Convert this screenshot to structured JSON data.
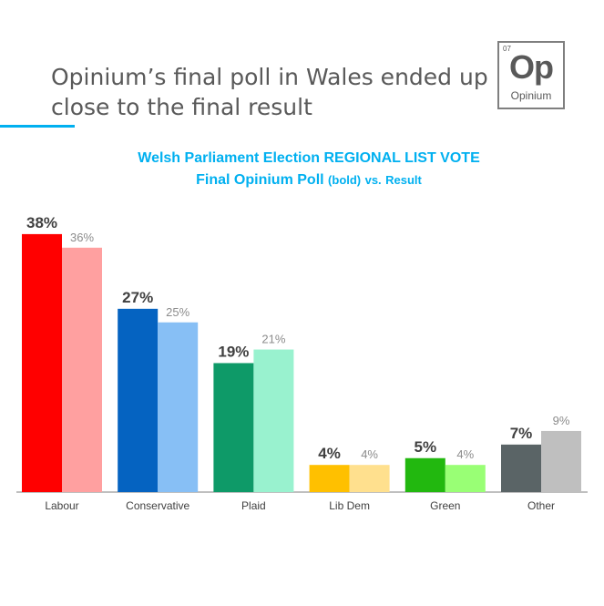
{
  "headline": "Opinium’s final poll in Wales ended up close to the final result",
  "logo": {
    "number": "07",
    "mark": "Op",
    "word": "Opinium"
  },
  "chart_title_line1": "Welsh Parliament Election REGIONAL LIST VOTE",
  "chart_title_line2_main": "Final Opinium Poll",
  "chart_title_line2_small1": "(bold)",
  "chart_title_line2_mid": "vs.",
  "chart_title_line2_end": "Result",
  "chart_data": {
    "type": "bar",
    "categories": [
      "Labour",
      "Conservative",
      "Plaid",
      "Lib Dem",
      "Green",
      "Other"
    ],
    "series": [
      {
        "values": [
          38,
          27,
          19,
          4,
          5,
          7
        ],
        "colors": [
          "#ff0000",
          "#0563c1",
          "#0e9a68",
          "#ffc000",
          "#22b80f",
          "#5a6466"
        ]
      },
      {
        "values": [
          36,
          25,
          21,
          4,
          4,
          9
        ],
        "colors": [
          "#ffa0a0",
          "#87bff5",
          "#99f2cf",
          "#ffe08e",
          "#99ff75",
          "#bfbfbf"
        ]
      }
    ],
    "data_labels": [
      [
        "38%",
        "27%",
        "19%",
        "4%",
        "5%",
        "7%"
      ],
      [
        "36%",
        "25%",
        "21%",
        "4%",
        "4%",
        "9%"
      ]
    ],
    "ylim": [
      0,
      40
    ],
    "grid": false,
    "legend": "none"
  }
}
